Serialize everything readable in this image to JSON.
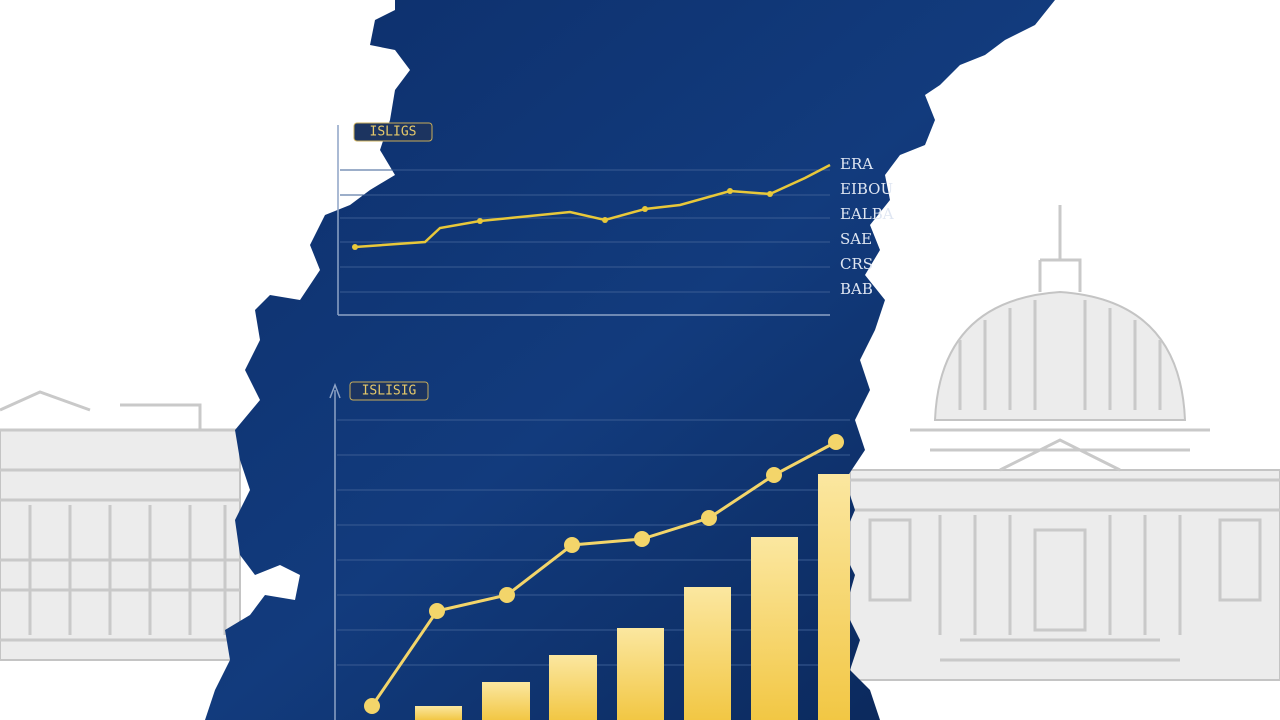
{
  "top_chart": {
    "header": "ISLIGS",
    "labels": [
      "ERA",
      "EIBOU",
      "EALBA",
      "SAE",
      "CRS",
      "BAB"
    ]
  },
  "bottom_chart": {
    "header": "ISLISIG"
  }
}
